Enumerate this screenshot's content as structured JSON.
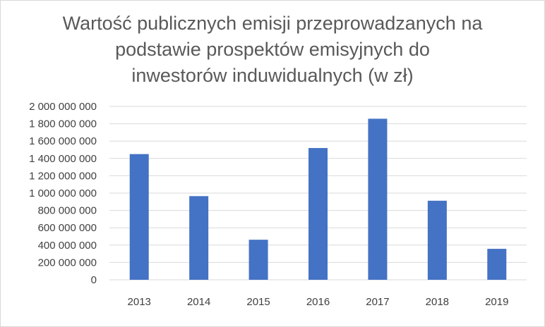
{
  "chart_data": {
    "type": "bar",
    "title": "Wartość publicznych emisji przeprowadzanych na\npodstawie prospektów emisyjnych do\ninwestorów induwidualnych (w zł)",
    "categories": [
      "2013",
      "2014",
      "2015",
      "2016",
      "2017",
      "2018",
      "2019"
    ],
    "values": [
      1450000000,
      965000000,
      462000000,
      1520000000,
      1858000000,
      912000000,
      357000000
    ],
    "ylim": [
      0,
      2000000000
    ],
    "ytick_step": 200000000,
    "ytick_labels": [
      "0",
      "200 000 000",
      "400 000 000",
      "600 000 000",
      "800 000 000",
      "1 000 000 000",
      "1 200 000 000",
      "1 400 000 000",
      "1 600 000 000",
      "1 800 000 000",
      "2 000 000 000"
    ],
    "grid": true,
    "legend": "none",
    "bar_color": "#4472C4",
    "grid_color": "#d9d9d9"
  }
}
